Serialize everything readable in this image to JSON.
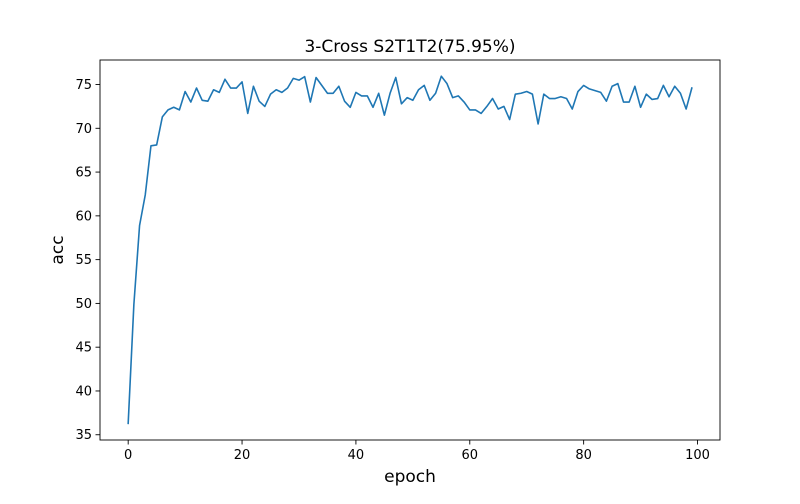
{
  "chart_data": {
    "type": "line",
    "title": "3-Cross S2T1T2(75.95%)",
    "xlabel": "epoch",
    "ylabel": "acc",
    "xlim": [
      -4.95,
      103.95
    ],
    "ylim": [
      34.4,
      77.8
    ],
    "xticks": [
      0,
      20,
      40,
      60,
      80,
      100
    ],
    "yticks": [
      35,
      40,
      45,
      50,
      55,
      60,
      65,
      70,
      75
    ],
    "grid": false,
    "legend": "none",
    "line_color": "#1f77b4",
    "series": [
      {
        "x": [
          0,
          1,
          2,
          3,
          4,
          5,
          6,
          7,
          8,
          9,
          10,
          11,
          12,
          13,
          14,
          15,
          16,
          17,
          18,
          19,
          20,
          21,
          22,
          23,
          24,
          25,
          26,
          27,
          28,
          29,
          30,
          31,
          32,
          33,
          34,
          35,
          36,
          37,
          38,
          39,
          40,
          41,
          42,
          43,
          44,
          45,
          46,
          47,
          48,
          49,
          50,
          51,
          52,
          53,
          54,
          55,
          56,
          57,
          58,
          59,
          60,
          61,
          62,
          63,
          64,
          65,
          66,
          67,
          68,
          69,
          70,
          71,
          72,
          73,
          74,
          75,
          76,
          77,
          78,
          79,
          80,
          81,
          82,
          83,
          84,
          85,
          86,
          87,
          88,
          89,
          90,
          91,
          92,
          93,
          94,
          95,
          96,
          97,
          98,
          99
        ],
        "values": [
          36.3,
          49.9,
          58.9,
          62.4,
          68.0,
          68.1,
          71.3,
          72.1,
          72.4,
          72.1,
          74.2,
          73.0,
          74.6,
          73.2,
          73.1,
          74.4,
          74.1,
          75.6,
          74.6,
          74.6,
          75.3,
          71.7,
          74.8,
          73.1,
          72.5,
          73.9,
          74.4,
          74.1,
          74.6,
          75.7,
          75.5,
          75.9,
          73.0,
          75.8,
          74.9,
          74.0,
          74.0,
          74.8,
          73.1,
          72.4,
          74.1,
          73.7,
          73.7,
          72.4,
          74.0,
          71.5,
          74.0,
          75.8,
          72.8,
          73.5,
          73.2,
          74.4,
          74.9,
          73.2,
          74.0,
          75.95,
          75.1,
          73.5,
          73.7,
          73.0,
          72.1,
          72.1,
          71.7,
          72.5,
          73.4,
          72.2,
          72.5,
          71.0,
          73.9,
          74.0,
          74.2,
          73.9,
          70.5,
          73.9,
          73.4,
          73.4,
          73.6,
          73.4,
          72.2,
          74.2,
          74.9,
          74.5,
          74.3,
          74.1,
          73.1,
          74.8,
          75.1,
          73.0,
          73.0,
          74.8,
          72.4,
          73.9,
          73.3,
          73.4,
          74.9,
          73.6,
          74.8,
          74.0,
          72.2,
          74.6
        ]
      }
    ]
  }
}
